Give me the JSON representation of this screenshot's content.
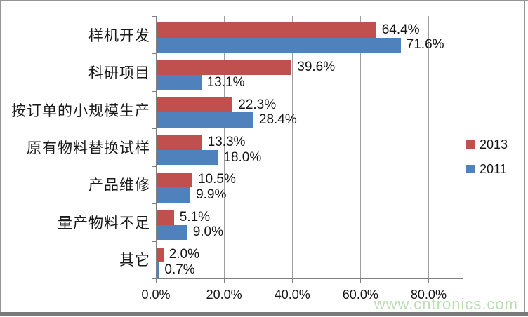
{
  "chart_data": {
    "type": "bar",
    "orientation": "horizontal",
    "title": "",
    "categories": [
      "样机开发",
      "科研项目",
      "按订单的小规模生产",
      "原有物料替换试样",
      "产品维修",
      "量产物料不足",
      "其它"
    ],
    "series": [
      {
        "name": "2013",
        "color": "#C0504D",
        "values": [
          64.4,
          39.6,
          22.3,
          13.3,
          10.5,
          5.1,
          2.0
        ],
        "labels": [
          "64.4%",
          "39.6%",
          "22.3%",
          "13.3%",
          "10.5%",
          "5.1%",
          "2.0%"
        ]
      },
      {
        "name": "2011",
        "color": "#4F81BD",
        "values": [
          71.6,
          13.1,
          28.4,
          18.0,
          9.9,
          9.0,
          0.7
        ],
        "labels": [
          "71.6%",
          "13.1%",
          "28.4%",
          "18.0%",
          "9.9%",
          "9.0%",
          "0.7%"
        ]
      }
    ],
    "x_axis": {
      "tick_labels": [
        "0.0%",
        "20.0%",
        "40.0%",
        "60.0%",
        "80.0%"
      ],
      "tick_values": [
        0,
        20,
        40,
        60,
        80
      ],
      "min": 0,
      "max": 90
    },
    "grid": true,
    "legend_position": "middle-right"
  },
  "watermark": {
    "text": "www.cntronics.com",
    "color": "#b9dfb3"
  },
  "style": {
    "background": "#ffffff",
    "axis_color": "#808080",
    "gridline_color": "#9e9e9e",
    "text_color": "#141414",
    "frame_border_color": "#949494",
    "frame_bottom_border_color": "#7a7a7a"
  }
}
